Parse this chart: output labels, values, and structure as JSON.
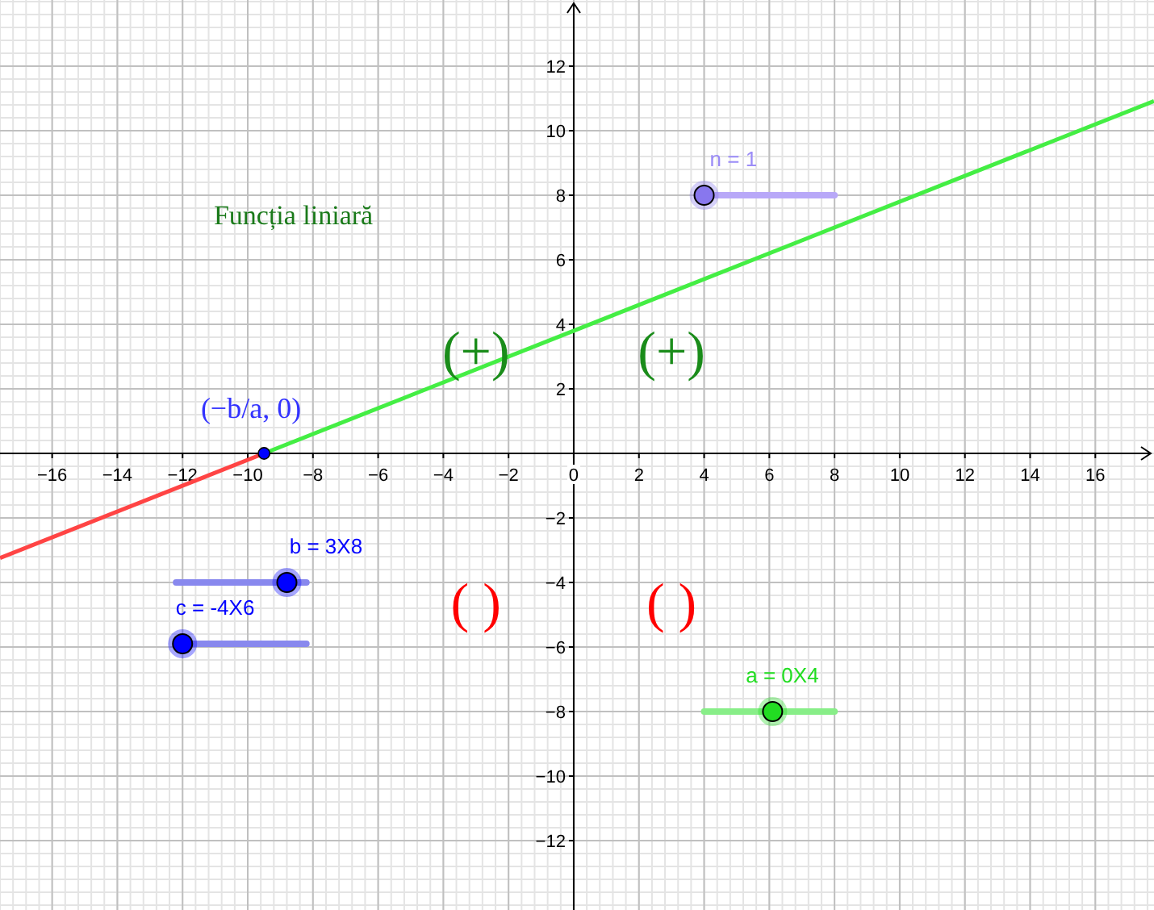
{
  "chart_data": {
    "type": "line",
    "title": "Funcția liniară",
    "xlim": [
      -17.6,
      17.8
    ],
    "ylim": [
      -14.15,
      14.05
    ],
    "xticks": [
      -16,
      -14,
      -12,
      -10,
      -8,
      -6,
      -4,
      -2,
      0,
      2,
      4,
      6,
      8,
      10,
      12,
      14,
      16
    ],
    "yticks": [
      -12,
      -10,
      -8,
      -6,
      -4,
      -2,
      2,
      4,
      6,
      8,
      10,
      12
    ],
    "grid": true,
    "marker": "none",
    "line_style": "solid",
    "series": [
      {
        "color": "#ff4444",
        "x": [
          -17.6,
          -9.5
        ],
        "values": [
          -3.24,
          0
        ]
      },
      {
        "color": "#44ee44",
        "x": [
          -9.5,
          17.8
        ],
        "values": [
          0,
          10.92
        ]
      },
      {
        "type": "scatter",
        "marker": "circle",
        "color": "#0000ff",
        "x": [
          -9.5
        ],
        "values": [
          0
        ]
      }
    ],
    "annotations": [
      "(−b/a, 0)",
      "(+)",
      "(+)",
      "(   )",
      "(   )",
      "n = 1",
      "b = 3X8",
      "c = -4X6",
      "a = 0X4"
    ]
  }
}
